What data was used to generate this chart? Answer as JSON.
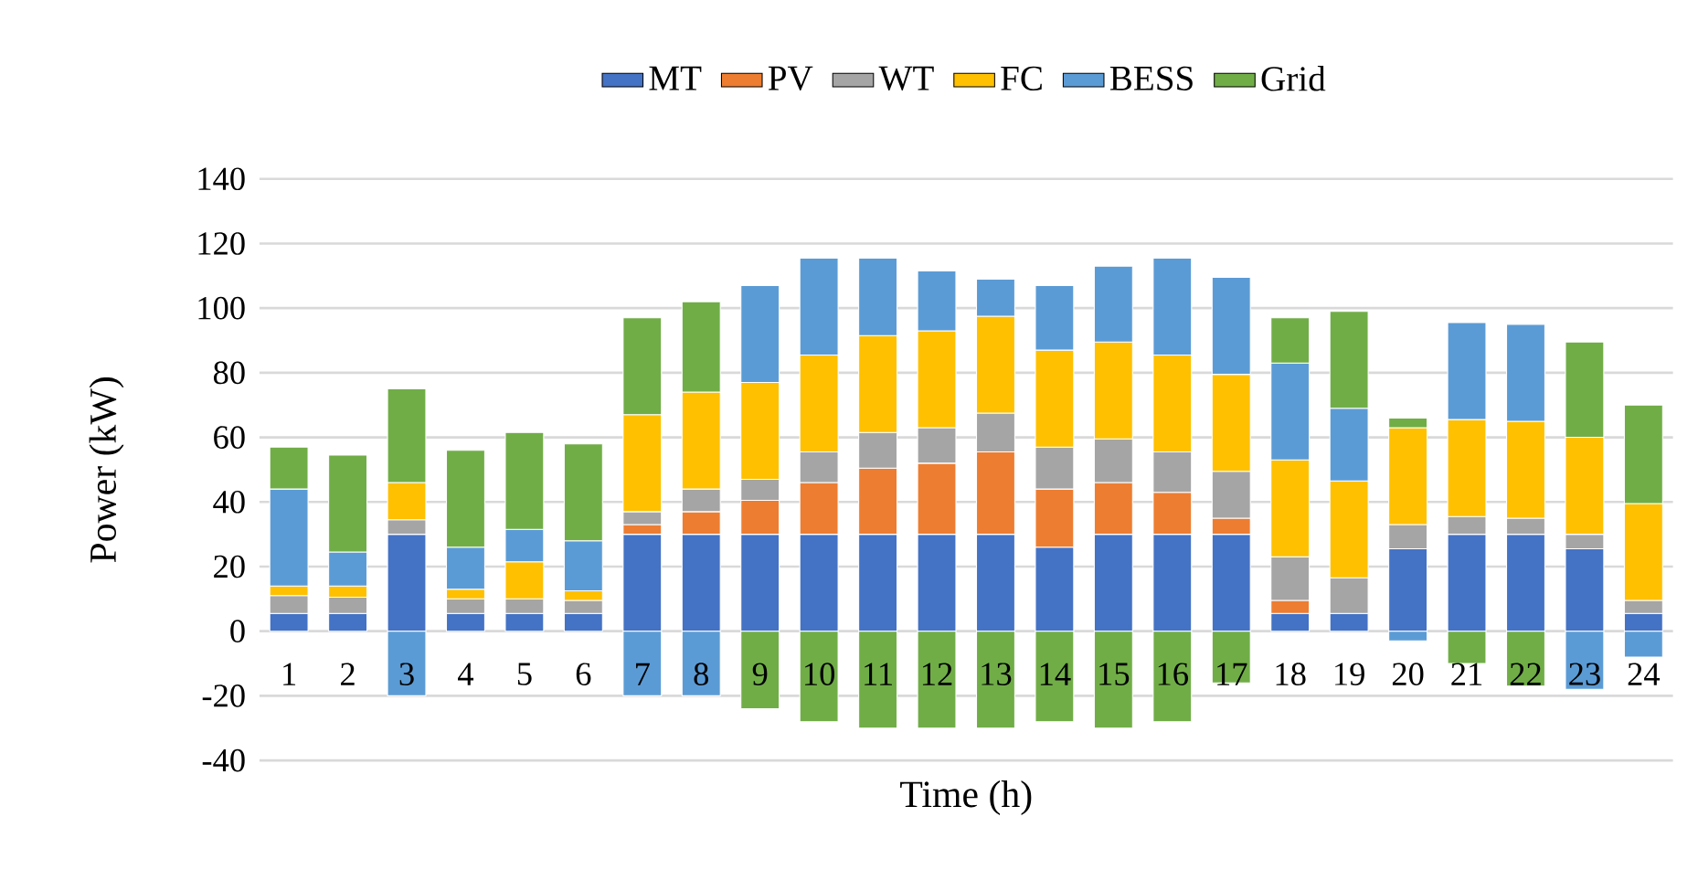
{
  "chart_data": {
    "type": "bar",
    "stacked": true,
    "xlabel": "Time (h)",
    "ylabel": "Power (kW)",
    "categories": [
      "1",
      "2",
      "3",
      "4",
      "5",
      "6",
      "7",
      "8",
      "9",
      "10",
      "11",
      "12",
      "13",
      "14",
      "15",
      "16",
      "17",
      "18",
      "19",
      "20",
      "21",
      "22",
      "23",
      "24"
    ],
    "series": [
      {
        "name": "MT",
        "color": "#4472c4",
        "values": [
          5.5,
          5.5,
          30,
          5.5,
          5.5,
          5.5,
          30,
          30,
          30,
          30,
          30,
          30,
          30,
          26,
          30,
          30,
          30,
          5.5,
          5.5,
          25.5,
          30,
          30,
          25.5,
          5.5
        ]
      },
      {
        "name": "PV",
        "color": "#ed7d31",
        "values": [
          0,
          0,
          0,
          0,
          0,
          0,
          3,
          7,
          10.5,
          16,
          20.5,
          22,
          25.5,
          18,
          16,
          13,
          5,
          4,
          0,
          0,
          0,
          0,
          0,
          0
        ]
      },
      {
        "name": "WT",
        "color": "#a5a5a5",
        "values": [
          5.5,
          5,
          4.5,
          4.5,
          4.5,
          4,
          4,
          7,
          6.5,
          9.5,
          11,
          11,
          12,
          13,
          13.5,
          12.5,
          14.5,
          13.5,
          11,
          7.5,
          5.5,
          5,
          4.5,
          4
        ]
      },
      {
        "name": "FC",
        "color": "#ffc000",
        "values": [
          3,
          3.5,
          11.5,
          3,
          11.5,
          3,
          30,
          30,
          30,
          30,
          30,
          30,
          30,
          30,
          30,
          30,
          30,
          30,
          30,
          30,
          30,
          30,
          30,
          30
        ]
      },
      {
        "name": "BESS",
        "color": "#5b9bd5",
        "values": [
          30,
          10.5,
          -20,
          13,
          10,
          15.5,
          -20,
          -20,
          30,
          30,
          24,
          18.5,
          11.5,
          20,
          23.5,
          30,
          30,
          30,
          22.5,
          -3,
          30,
          30,
          -18,
          -8
        ]
      },
      {
        "name": "Grid",
        "color": "#70ad47",
        "values": [
          13,
          30,
          29,
          30,
          30,
          30,
          30,
          28,
          -24,
          -28,
          -30,
          -30,
          -30,
          -28,
          -30,
          -28,
          -16,
          14,
          30,
          3,
          -10,
          -17,
          29.5,
          30.5
        ]
      }
    ],
    "ylim": [
      -40,
      140
    ],
    "yticks": [
      -40,
      -20,
      0,
      20,
      40,
      60,
      80,
      100,
      120,
      140
    ],
    "grid": "y",
    "legend": "top"
  }
}
